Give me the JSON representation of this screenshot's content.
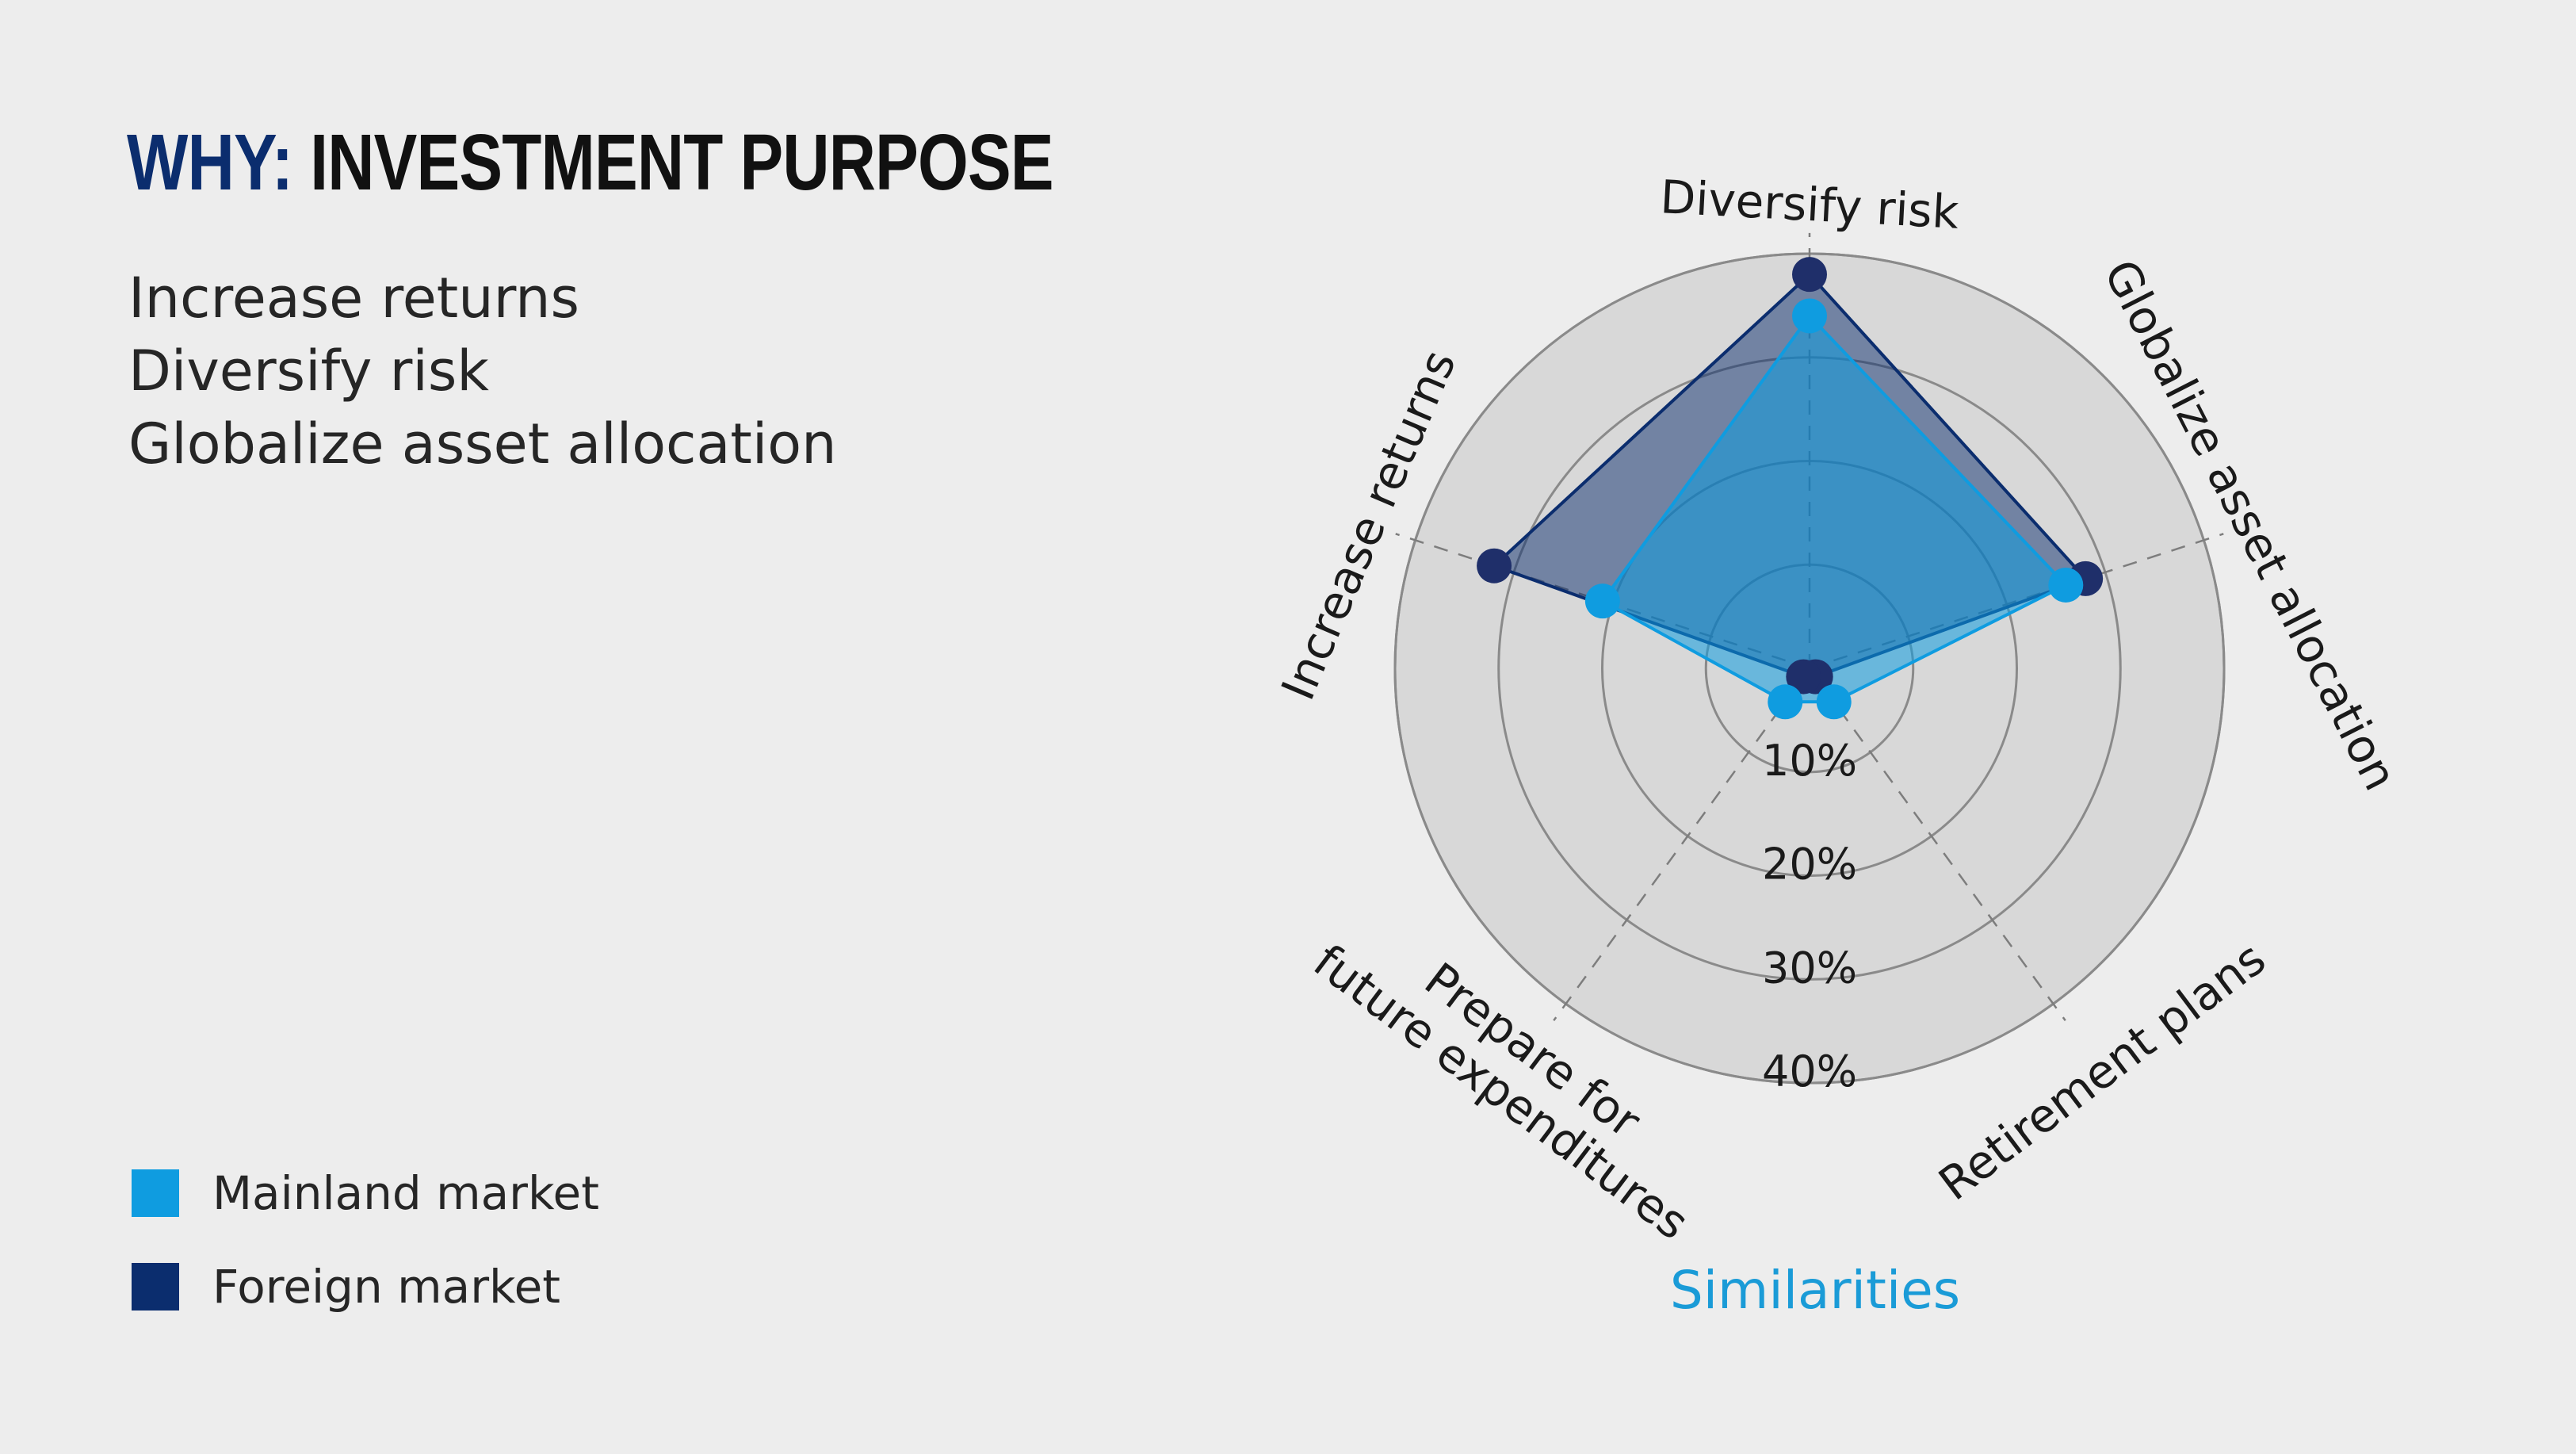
{
  "page": {
    "title_accent": "WHY:",
    "title_main": "INVESTMENT PURPOSE",
    "purposes": [
      "Increase returns",
      "Diversify risk",
      "Globalize asset allocation"
    ],
    "footer_label": "Similarities"
  },
  "colors": {
    "mainland": "#0f9ce0",
    "foreign": "#0b2d6e",
    "ring_fill": "#d8d8d8",
    "background": "#ededed"
  },
  "chart_data": {
    "type": "radar",
    "title": "",
    "axes": [
      "Diversify risk",
      "Globalize asset allocation",
      "Retirement plans",
      "Prepare for future expenditures",
      "Increase returns"
    ],
    "axis_label_lines": [
      [
        "Diversify risk"
      ],
      [
        "Globalize asset allocation"
      ],
      [
        "Retirement plans"
      ],
      [
        "Prepare for",
        "future expenditures"
      ],
      [
        "Increase returns"
      ]
    ],
    "ticks": [
      "10%",
      "20%",
      "30%",
      "40%"
    ],
    "rmax": 40,
    "series": [
      {
        "name": "Mainland market",
        "values": [
          34,
          26,
          4,
          4,
          21
        ]
      },
      {
        "name": "Foreign market",
        "values": [
          38,
          28,
          1,
          1,
          32
        ]
      }
    ],
    "grid": true,
    "legend_position": "bottom-left"
  }
}
